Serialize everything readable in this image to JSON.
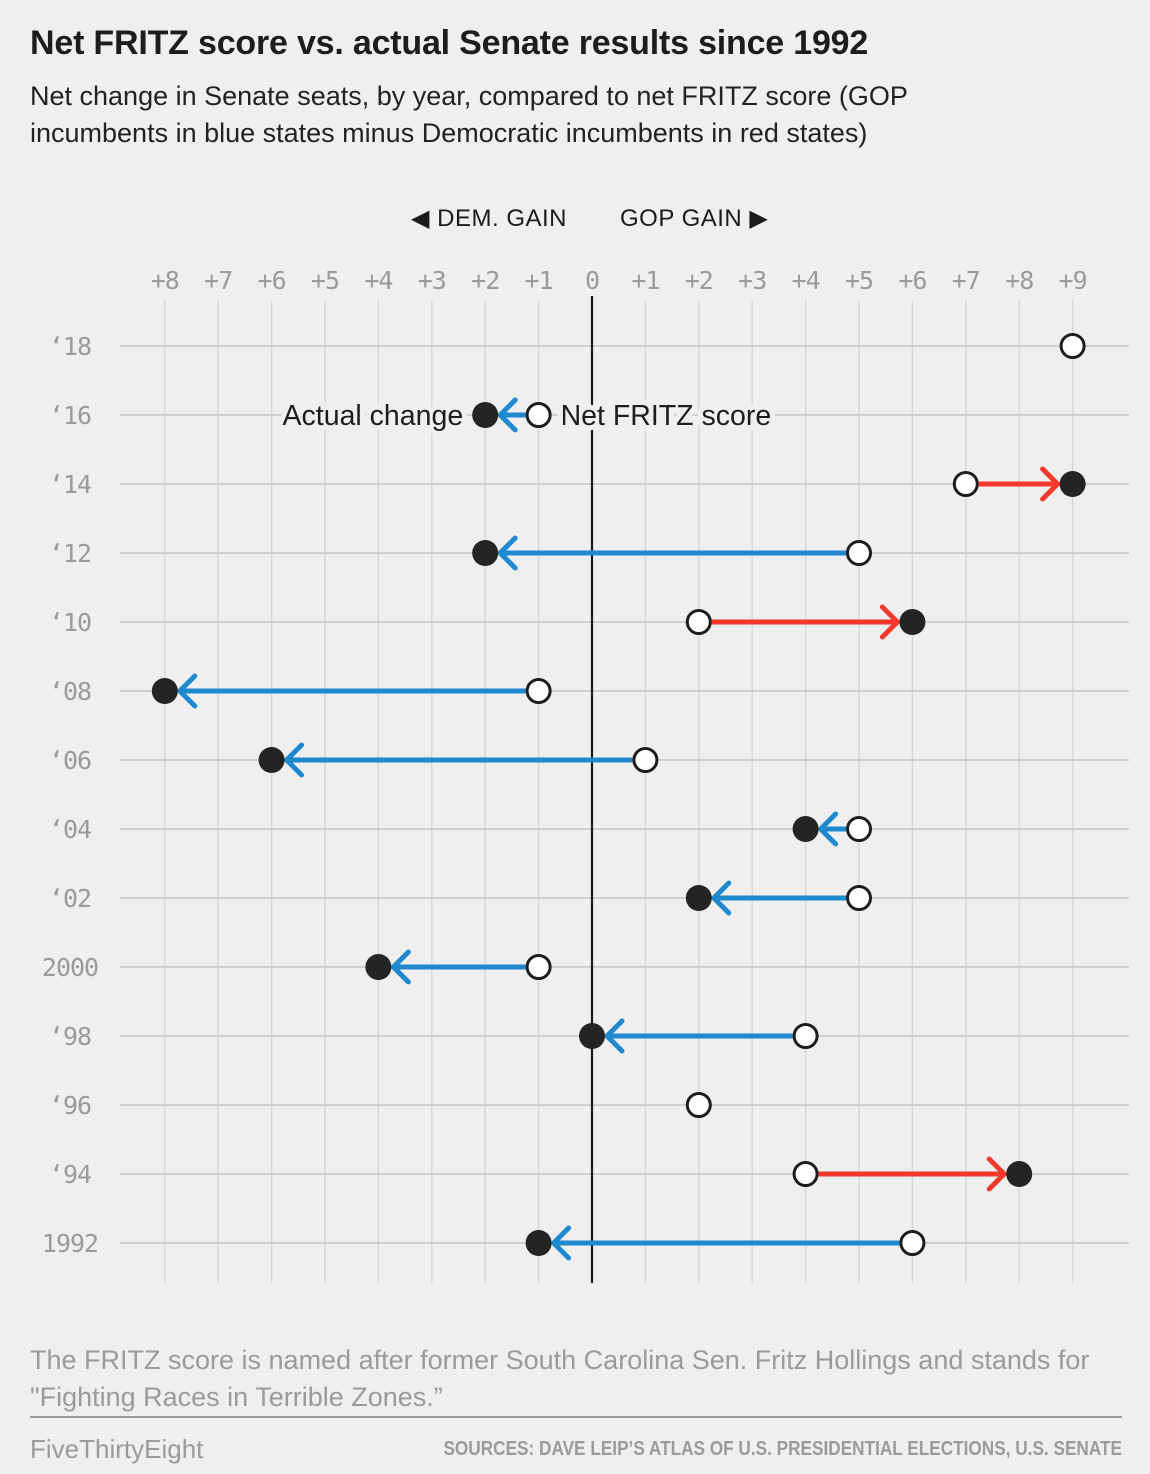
{
  "header": {
    "title": "Net FRITZ score vs. actual Senate results since 1992",
    "subtitle_line1": "Net change in Senate seats, by year, compared to net FRITZ score (GOP",
    "subtitle_line2": "incumbents in blue states minus Democratic incumbents in red states)"
  },
  "chart_data": {
    "type": "dumbbell",
    "title": "Net FRITZ score vs. actual Senate results since 1992",
    "direction_labels": {
      "left": "◀ DEM. GAIN",
      "right": "GOP GAIN ▶"
    },
    "x_tick_values": [
      -8,
      -7,
      -6,
      -5,
      -4,
      -3,
      -2,
      -1,
      0,
      1,
      2,
      3,
      4,
      5,
      6,
      7,
      8,
      9
    ],
    "x_tick_labels": [
      "+8",
      "+7",
      "+6",
      "+5",
      "+4",
      "+3",
      "+2",
      "+1",
      "0",
      "+1",
      "+2",
      "+3",
      "+4",
      "+5",
      "+6",
      "+7",
      "+8",
      "+9"
    ],
    "x_range": [
      -8,
      9
    ],
    "grid": true,
    "legend": {
      "actual_label": "Actual change",
      "fritz_label": "Net FRITZ score",
      "attached_to_year": "‘16"
    },
    "rows": [
      {
        "year": "‘18",
        "fritz": 9,
        "actual": null,
        "arrow": null
      },
      {
        "year": "‘16",
        "fritz": -1,
        "actual": -2,
        "arrow": "dem"
      },
      {
        "year": "‘14",
        "fritz": 7,
        "actual": 9,
        "arrow": "gop"
      },
      {
        "year": "‘12",
        "fritz": 5,
        "actual": -2,
        "arrow": "dem"
      },
      {
        "year": "‘10",
        "fritz": 2,
        "actual": 6,
        "arrow": "gop"
      },
      {
        "year": "‘08",
        "fritz": -1,
        "actual": -8,
        "arrow": "dem"
      },
      {
        "year": "‘06",
        "fritz": 1,
        "actual": -6,
        "arrow": "dem"
      },
      {
        "year": "‘04",
        "fritz": 5,
        "actual": 4,
        "arrow": "dem"
      },
      {
        "year": "‘02",
        "fritz": 5,
        "actual": 2,
        "arrow": "dem"
      },
      {
        "year": "2000",
        "fritz": -1,
        "actual": -4,
        "arrow": "dem"
      },
      {
        "year": "‘98",
        "fritz": 4,
        "actual": 0,
        "arrow": "dem"
      },
      {
        "year": "‘96",
        "fritz": 2,
        "actual": null,
        "arrow": null
      },
      {
        "year": "‘94",
        "fritz": 4,
        "actual": 8,
        "arrow": "gop"
      },
      {
        "year": "1992",
        "fritz": 6,
        "actual": -1,
        "arrow": "dem"
      }
    ],
    "colors": {
      "dem_arrow": "#1e89cf",
      "gop_arrow": "#f4382b",
      "actual_dot": "#242424",
      "fritz_circle_stroke": "#1d1d1d",
      "fritz_circle_fill": "#ffffff",
      "grid_line": "#cfcfcf",
      "zero_line": "#1a1a1a",
      "axis_text": "#9a9a9a",
      "background": "#efefef"
    }
  },
  "footer": {
    "note_line1": "The FRITZ score is named after former South Carolina Sen. Fritz Hollings and stands for",
    "note_line2": "\"Fighting Races in Terrible Zones.”",
    "brand": "FiveThirtyEight",
    "sources": "SOURCES: DAVE LEIP’S ATLAS OF U.S. PRESIDENTIAL ELECTIONS, U.S. SENATE"
  }
}
